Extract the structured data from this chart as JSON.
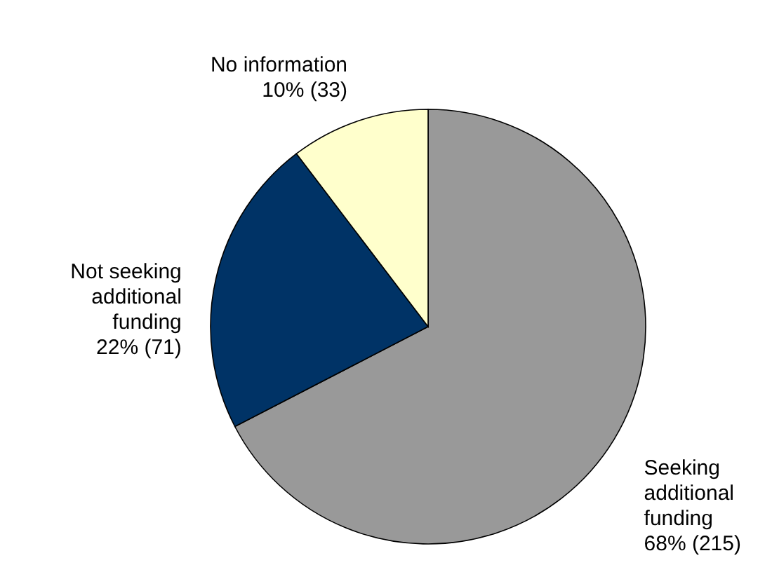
{
  "chart_data": {
    "type": "pie",
    "categories": [
      "Seeking\nadditional\nfunding",
      "Not seeking\nadditional\nfunding",
      "No information"
    ],
    "values": [
      215,
      71,
      33
    ],
    "value_labels": [
      "68%  (215)",
      "22%  (71)",
      "10%  (33)"
    ],
    "colors": [
      "#999999",
      "#003366",
      "#ffffcc"
    ]
  }
}
